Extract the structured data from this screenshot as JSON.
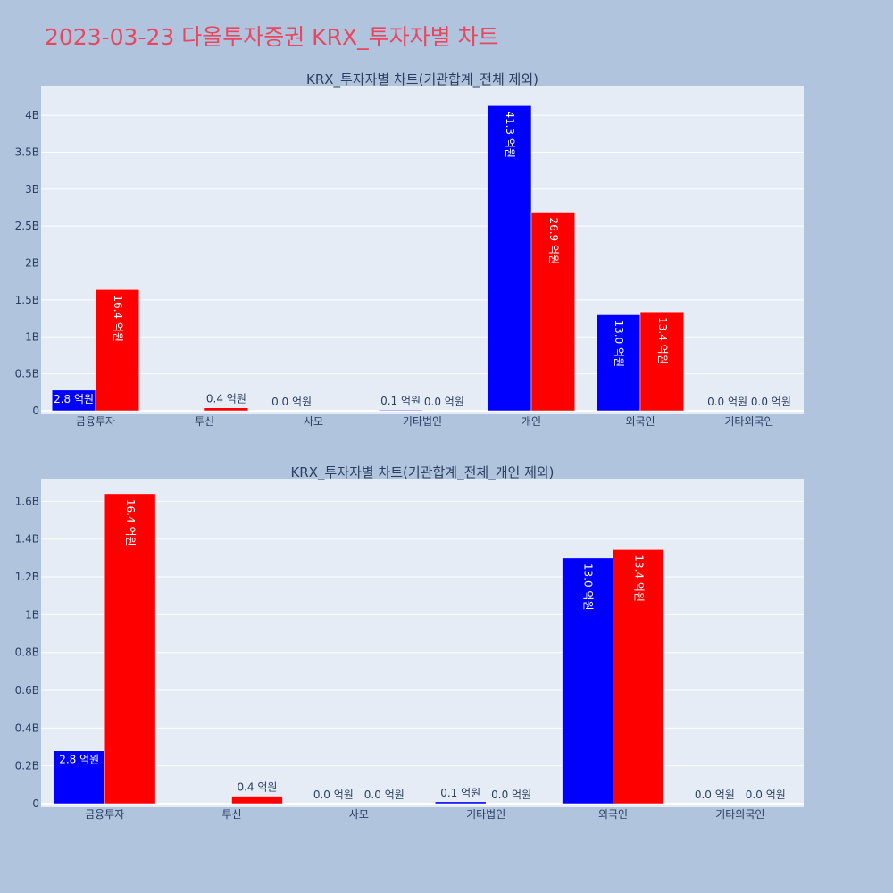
{
  "page_title": "2023-03-23 다올투자증권 KRX_투자자별 차트",
  "colors": {
    "background": "#b0c4de",
    "plot_bg": "#e5ecf6",
    "title": "#e8475f",
    "series_a": "#0000ff",
    "series_b": "#ff0000"
  },
  "chart_data": [
    {
      "type": "bar",
      "title": "KRX_투자자별 차트(기관합계_전체 제외)",
      "categories": [
        "금융투자",
        "투신",
        "사모",
        "기타법인",
        "개인",
        "외국인",
        "기타외국인"
      ],
      "ylim": [
        0,
        4.4
      ],
      "yticks": [
        0,
        0.5,
        1,
        1.5,
        2,
        2.5,
        3,
        3.5,
        4
      ],
      "ytick_labels": [
        "0",
        "0.5B",
        "1B",
        "1.5B",
        "2B",
        "2.5B",
        "3B",
        "3.5B",
        "4B"
      ],
      "grid": true,
      "series": [
        {
          "color": "#0000ff",
          "values": [
            0.28,
            0.0,
            0.0,
            0.01,
            4.13,
            1.3,
            0.0
          ],
          "labels": [
            "2.8 억원",
            "",
            "0.0 억원",
            "0.1 억원",
            "41.3 억원",
            "13.0 억원",
            "0.0 억원"
          ]
        },
        {
          "color": "#ff0000",
          "values": [
            1.64,
            0.04,
            0.0,
            0.0,
            2.69,
            1.34,
            0.0
          ],
          "labels": [
            "16.4 억원",
            "0.4 억원",
            "",
            "0.0 억원",
            "26.9 억원",
            "13.4 억원",
            "0.0 억원"
          ]
        }
      ]
    },
    {
      "type": "bar",
      "title": "KRX_투자자별 차트(기관합계_전체_개인 제외)",
      "categories": [
        "금융투자",
        "투신",
        "사모",
        "기타법인",
        "외국인",
        "기타외국인"
      ],
      "ylim": [
        0,
        1.72
      ],
      "yticks": [
        0,
        0.2,
        0.4,
        0.6,
        0.8,
        1.0,
        1.2,
        1.4,
        1.6
      ],
      "ytick_labels": [
        "0",
        "0.2B",
        "0.4B",
        "0.6B",
        "0.8B",
        "1B",
        "1.2B",
        "1.4B",
        "1.6B"
      ],
      "grid": true,
      "series": [
        {
          "color": "#0000ff",
          "values": [
            0.28,
            0.0,
            0.0,
            0.01,
            1.3,
            0.0
          ],
          "labels": [
            "2.8 억원",
            "",
            "0.0 억원",
            "0.1 억원",
            "13.0 억원",
            "0.0 억원"
          ]
        },
        {
          "color": "#ff0000",
          "values": [
            1.64,
            0.04,
            0.0,
            0.0,
            1.345,
            0.0
          ],
          "labels": [
            "16.4 억원",
            "0.4 억원",
            "0.0 억원",
            "0.0 억원",
            "13.4 억원",
            "0.0 억원"
          ]
        }
      ]
    }
  ]
}
